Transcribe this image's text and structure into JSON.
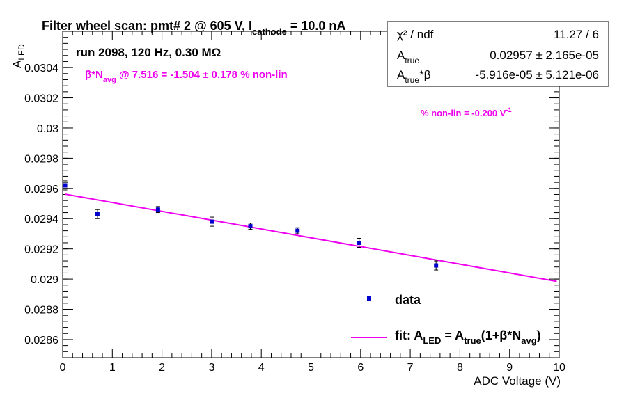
{
  "chart_data": {
    "type": "scatter",
    "title_main": "Filter wheel scan: pmt#   2 @   605 V, I",
    "title_sub": "cathode",
    "title_tail": " = 10.0 nA",
    "subtitle": "run 2098, 120 Hz, 0.30 MΩ",
    "xlabel": "ADC Voltage (V)",
    "ylabel_main": "A",
    "ylabel_sub": "LED",
    "xlim": [
      0,
      10
    ],
    "ylim": [
      0.02848,
      0.03064
    ],
    "x_ticks": [
      0,
      1,
      2,
      3,
      4,
      5,
      6,
      7,
      8,
      9,
      10
    ],
    "x_tick_labels": [
      "0",
      "1",
      "2",
      "3",
      "4",
      "5",
      "6",
      "7",
      "8",
      "9",
      "10"
    ],
    "y_ticks": [
      0.0286,
      0.0288,
      0.029,
      0.0292,
      0.0294,
      0.0296,
      0.0298,
      0.03,
      0.0302,
      0.0304
    ],
    "y_tick_labels": [
      "0.0286",
      "0.0288",
      "0.029",
      "0.0292",
      "0.0294",
      "0.0296",
      "0.0298",
      "0.03",
      "0.0302",
      "0.0304"
    ],
    "series": [
      {
        "name": "data",
        "x": [
          0.05,
          0.7,
          1.92,
          3.01,
          3.78,
          4.73,
          5.97,
          7.52
        ],
        "y": [
          0.02962,
          0.02943,
          0.02946,
          0.02938,
          0.02935,
          0.02932,
          0.02924,
          0.02909
        ],
        "yerr": [
          3e-05,
          3e-05,
          2e-05,
          3e-05,
          2e-05,
          2e-05,
          3e-05,
          3e-05
        ],
        "color": "#0000cc"
      }
    ],
    "fit": {
      "name": "fit",
      "x": [
        0.05,
        9.95
      ],
      "y": [
        0.029562,
        0.028985
      ],
      "color": "#ee00ee"
    },
    "annotations": {
      "beta_line": {
        "beta": "β*N",
        "sub": "avg",
        "tail": " @ 7.516 = -1.504 ± 0.178 % non-lin"
      },
      "nonlin": {
        "text": "% non-lin = -0.200 V",
        "sup": "-1"
      }
    },
    "legend": {
      "data_label": "data",
      "fit_label_parts": [
        "fit: A",
        "LED",
        " = A",
        "true",
        "(1+β*N",
        "avg",
        ")"
      ]
    },
    "stats": {
      "chi2_label": "χ² / ndf",
      "chi2_value": "11.27 / 6",
      "atrue_label": "A",
      "atrue_sub": "true",
      "atrue_value": "0.02957 ± 2.165e-05",
      "atb_label": "A",
      "atb_sub": "true",
      "atb_tail": "*β",
      "atb_value": "-5.916e-05 ± 5.121e-06"
    }
  }
}
